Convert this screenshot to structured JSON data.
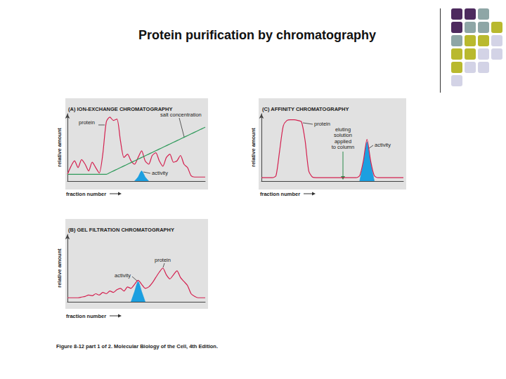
{
  "title": "Protein purification by chromatography",
  "caption": "Figure 8-12 part 1 of 2. Molecular Biology of the Cell, 4th Edition.",
  "chart_data": [
    {
      "type": "line",
      "title": "(A) ION-EXCHANGE CHROMATOGRAPHY",
      "x_label": "fraction number",
      "y_label": "relative amount",
      "x": [
        0,
        1,
        2,
        3,
        4,
        5,
        6,
        7,
        8,
        9,
        10,
        11,
        12,
        13,
        14,
        15,
        16,
        17,
        18,
        19,
        20,
        21,
        22,
        23,
        24,
        25,
        26,
        27,
        28,
        29,
        30,
        31,
        32,
        33,
        34,
        35,
        36,
        37,
        38,
        39
      ],
      "xlim": [
        0,
        39
      ],
      "ylim": [
        0,
        100
      ],
      "tick_labels": false,
      "grid": false,
      "series": [
        {
          "name": "protein",
          "color": "#d4204f",
          "values": [
            10,
            22,
            30,
            20,
            32,
            25,
            15,
            28,
            20,
            12,
            40,
            88,
            95,
            90,
            92,
            60,
            35,
            40,
            30,
            25,
            35,
            45,
            30,
            25,
            38,
            42,
            30,
            22,
            35,
            40,
            28,
            30,
            38,
            25,
            20,
            8,
            6,
            6,
            6,
            6
          ]
        },
        {
          "name": "activity",
          "type": "area",
          "color": "#1c9fe0",
          "values": [
            null,
            null,
            null,
            null,
            null,
            null,
            null,
            null,
            null,
            null,
            null,
            null,
            null,
            null,
            null,
            null,
            null,
            null,
            null,
            0,
            6,
            15,
            6,
            0,
            null,
            null,
            null,
            null,
            null,
            null,
            null,
            null,
            null,
            null,
            null,
            null,
            null,
            null,
            null,
            null
          ]
        },
        {
          "name": "salt concentration",
          "color": "#2e9a5a",
          "values": [
            10,
            10,
            10,
            10,
            10,
            10,
            10,
            10,
            10,
            10,
            10,
            10,
            12.5,
            15,
            17.5,
            20,
            22.5,
            25,
            27.5,
            30,
            32.5,
            35,
            37.5,
            40,
            42.5,
            45,
            47.5,
            50,
            52.5,
            55,
            57.5,
            60,
            62.5,
            65,
            67.5,
            70,
            72.5,
            75,
            77.5,
            80
          ]
        }
      ]
    },
    {
      "type": "line",
      "title": "(B) GEL FILTRATION CHROMATOGRAPHY",
      "x_label": "fraction number",
      "y_label": "relative amount",
      "x": [
        0,
        1,
        2,
        3,
        4,
        5,
        6,
        7,
        8,
        9,
        10,
        11,
        12,
        13,
        14,
        15,
        16,
        17,
        18,
        19,
        20,
        21,
        22,
        23,
        24,
        25,
        26,
        27,
        28,
        29,
        30,
        31,
        32,
        33,
        34,
        35,
        36,
        37,
        38,
        39
      ],
      "xlim": [
        0,
        39
      ],
      "ylim": [
        0,
        100
      ],
      "tick_labels": false,
      "grid": false,
      "series": [
        {
          "name": "protein",
          "color": "#d4204f",
          "values": [
            6,
            6,
            6,
            6,
            7,
            8,
            10,
            9,
            12,
            10,
            14,
            12,
            16,
            14,
            18,
            20,
            16,
            22,
            20,
            26,
            32,
            26,
            20,
            22,
            28,
            36,
            44,
            50,
            40,
            34,
            40,
            46,
            36,
            30,
            24,
            12,
            8,
            6,
            6,
            6
          ]
        },
        {
          "name": "activity",
          "type": "area",
          "color": "#1c9fe0",
          "values": [
            null,
            null,
            null,
            null,
            null,
            null,
            null,
            null,
            null,
            null,
            null,
            null,
            null,
            null,
            null,
            null,
            null,
            null,
            0,
            15,
            30,
            15,
            0,
            null,
            null,
            null,
            null,
            null,
            null,
            null,
            null,
            null,
            null,
            null,
            null,
            null,
            null,
            null,
            null,
            null
          ]
        }
      ]
    },
    {
      "type": "line",
      "title": "(C) AFFINITY CHROMATOGRAPHY",
      "x_label": "fraction number",
      "y_label": "relative amount",
      "x": [
        0,
        1,
        2,
        3,
        4,
        5,
        6,
        7,
        8,
        9,
        10,
        11,
        12,
        13,
        14,
        15,
        16,
        17,
        18,
        19,
        20,
        21,
        22,
        23,
        24,
        25,
        26,
        27,
        28,
        29,
        30,
        31,
        32,
        33,
        34,
        35,
        36,
        37,
        38,
        39
      ],
      "xlim": [
        0,
        39
      ],
      "ylim": [
        0,
        100
      ],
      "tick_labels": false,
      "grid": false,
      "annotations": [
        "eluting\nsolution\napplied\nto column"
      ],
      "series": [
        {
          "name": "protein",
          "color": "#d4204f",
          "values": [
            5,
            5,
            5,
            5,
            8,
            45,
            82,
            90,
            91,
            91,
            90,
            88,
            60,
            15,
            6,
            5,
            5,
            5,
            5,
            5,
            5,
            5,
            5,
            5,
            5,
            5,
            5,
            8,
            30,
            62,
            30,
            8,
            5,
            5,
            5,
            5,
            5,
            5,
            5,
            5
          ]
        },
        {
          "name": "activity",
          "type": "area",
          "color": "#1c9fe0",
          "values": [
            null,
            null,
            null,
            null,
            null,
            null,
            null,
            null,
            null,
            null,
            null,
            null,
            null,
            null,
            null,
            null,
            null,
            null,
            null,
            null,
            null,
            null,
            null,
            null,
            null,
            null,
            null,
            0,
            27,
            58,
            27,
            0,
            null,
            null,
            null,
            null,
            null,
            null,
            null,
            null
          ]
        }
      ]
    }
  ]
}
